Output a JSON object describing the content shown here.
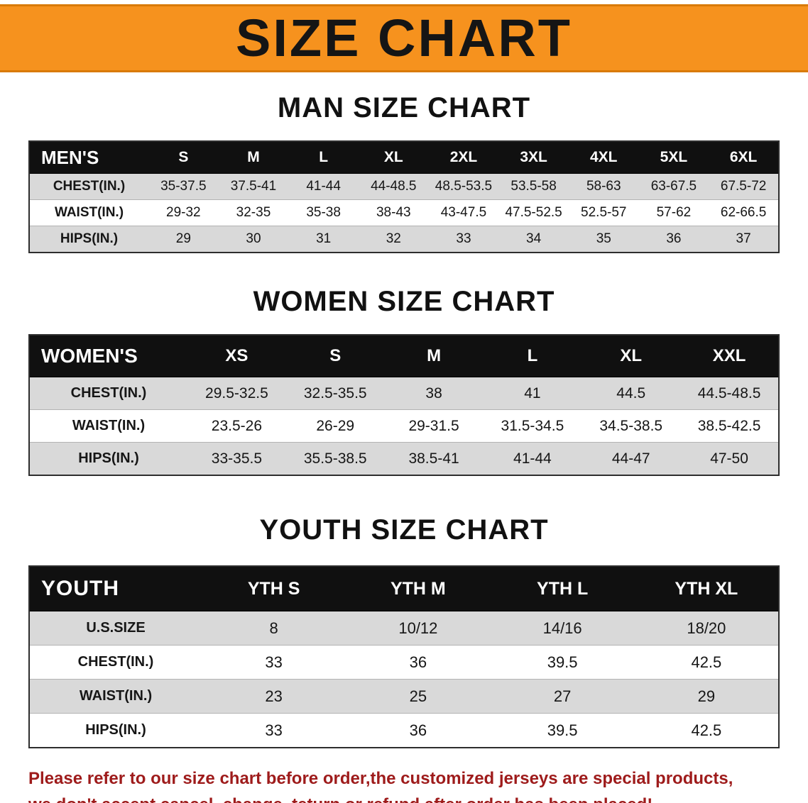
{
  "banner": {
    "title": "SIZE CHART"
  },
  "men": {
    "heading": "MAN SIZE CHART",
    "table": {
      "header": [
        "MEN'S",
        "S",
        "M",
        "L",
        "XL",
        "2XL",
        "3XL",
        "4XL",
        "5XL",
        "6XL"
      ],
      "rows": [
        {
          "label": "CHEST(IN.)",
          "values": [
            "35-37.5",
            "37.5-41",
            "41-44",
            "44-48.5",
            "48.5-53.5",
            "53.5-58",
            "58-63",
            "63-67.5",
            "67.5-72"
          ]
        },
        {
          "label": "WAIST(IN.)",
          "values": [
            "29-32",
            "32-35",
            "35-38",
            "38-43",
            "43-47.5",
            "47.5-52.5",
            "52.5-57",
            "57-62",
            "62-66.5"
          ]
        },
        {
          "label": "HIPS(IN.)",
          "values": [
            "29",
            "30",
            "31",
            "32",
            "33",
            "34",
            "35",
            "36",
            "37"
          ]
        }
      ]
    }
  },
  "women": {
    "heading": "WOMEN SIZE CHART",
    "table": {
      "header": [
        "WOMEN'S",
        "XS",
        "S",
        "M",
        "L",
        "XL",
        "XXL"
      ],
      "rows": [
        {
          "label": "CHEST(IN.)",
          "values": [
            "29.5-32.5",
            "32.5-35.5",
            "38",
            "41",
            "44.5",
            "44.5-48.5"
          ]
        },
        {
          "label": "WAIST(IN.)",
          "values": [
            "23.5-26",
            "26-29",
            "29-31.5",
            "31.5-34.5",
            "34.5-38.5",
            "38.5-42.5"
          ]
        },
        {
          "label": "HIPS(IN.)",
          "values": [
            "33-35.5",
            "35.5-38.5",
            "38.5-41",
            "41-44",
            "44-47",
            "47-50"
          ]
        }
      ]
    }
  },
  "youth": {
    "heading": "YOUTH SIZE CHART",
    "table": {
      "header": [
        "YOUTH",
        "YTH S",
        "YTH M",
        "YTH L",
        "YTH XL"
      ],
      "rows": [
        {
          "label": "U.S.SIZE",
          "values": [
            "8",
            "10/12",
            "14/16",
            "18/20"
          ]
        },
        {
          "label": "CHEST(IN.)",
          "values": [
            "33",
            "36",
            "39.5",
            "42.5"
          ]
        },
        {
          "label": "WAIST(IN.)",
          "values": [
            "23",
            "25",
            "27",
            "29"
          ]
        },
        {
          "label": "HIPS(IN.)",
          "values": [
            "33",
            "36",
            "39.5",
            "42.5"
          ]
        }
      ]
    }
  },
  "footer": {
    "line1": "Please refer to our size chart before order,the customized jerseys are special products,",
    "line2": "we don't accept cancel, change, teturn or refund after order has been placed!"
  },
  "colors": {
    "banner_bg": "#F6921E",
    "banner_edge": "#d97a06",
    "header_bg": "#101010",
    "row_alt": "#d9d9d9",
    "footer_text": "#9e1b1b"
  }
}
